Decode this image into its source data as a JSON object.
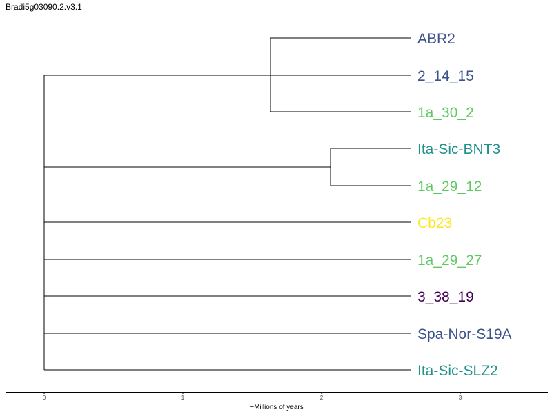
{
  "title": "Bradi5g03090.2.v3.1",
  "tree": {
    "leaves": [
      {
        "label": "ABR2",
        "color": "#3b528b"
      },
      {
        "label": "2_14_15",
        "color": "#3b528b"
      },
      {
        "label": "1a_30_2",
        "color": "#5ec962"
      },
      {
        "label": "Ita-Sic-BNT3",
        "color": "#21918c"
      },
      {
        "label": "1a_29_12",
        "color": "#5ec962"
      },
      {
        "label": "Cb23",
        "color": "#fde725"
      },
      {
        "label": "1a_29_27",
        "color": "#5ec962"
      },
      {
        "label": "3_38_19",
        "color": "#440154"
      },
      {
        "label": "Spa-Nor-S19A",
        "color": "#3b528b"
      },
      {
        "label": "Ita-Sic-SLZ2",
        "color": "#21918c"
      }
    ]
  },
  "axis": {
    "label": "~Millions of years",
    "ticks": [
      "0",
      "1",
      "2",
      "3"
    ]
  }
}
